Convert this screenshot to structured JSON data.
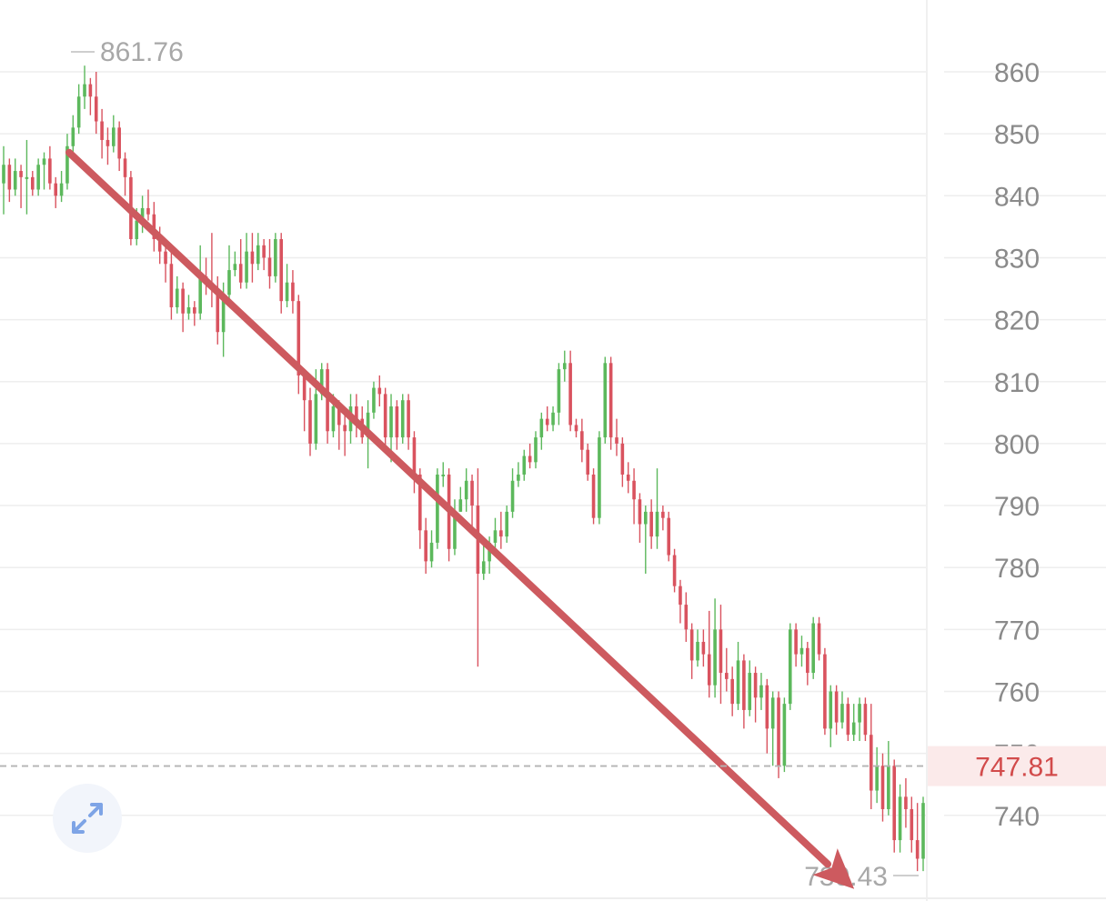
{
  "chart_data": {
    "type": "candlestick",
    "title": "",
    "xlabel": "",
    "ylabel": "",
    "ylim": [
      729,
      868
    ],
    "yticks": [
      860,
      850,
      840,
      830,
      820,
      810,
      800,
      790,
      780,
      770,
      760,
      740
    ],
    "ytick_labels": [
      "860",
      "850",
      "840",
      "830",
      "820",
      "810",
      "800",
      "790",
      "780",
      "770",
      "760",
      "740"
    ],
    "partially_hidden_tick_label": "750",
    "grid": true,
    "high_label": "861.76",
    "low_label": "730.43",
    "high_value": 861.76,
    "low_value": 730.43,
    "current_price": 747.81,
    "current_price_label": "747.81",
    "trend_arrow": {
      "start": 848,
      "end": 738
    },
    "colors": {
      "up": "#5cb85c",
      "down": "#d9535f",
      "arrow": "#cd5a5f",
      "grid": "#eeeeee",
      "current_line": "#b4b4b4",
      "current_bg": "#fbeaea",
      "current_text": "#d24b4b",
      "expand_icon": "#7ea4e6"
    },
    "candles": [
      [
        842,
        845,
        837,
        848
      ],
      [
        845,
        841,
        839,
        846
      ],
      [
        841,
        844,
        840,
        846
      ],
      [
        844,
        843,
        838,
        845
      ],
      [
        843,
        843,
        837,
        849
      ],
      [
        843,
        841,
        840,
        844
      ],
      [
        841,
        845,
        840,
        846
      ],
      [
        845,
        846,
        841,
        847
      ],
      [
        846,
        842,
        841,
        848
      ],
      [
        842,
        840,
        838,
        843
      ],
      [
        840,
        842,
        839,
        844
      ],
      [
        842,
        848,
        841,
        850
      ],
      [
        848,
        851,
        847,
        853
      ],
      [
        851,
        856,
        850,
        858
      ],
      [
        856,
        858,
        854,
        861
      ],
      [
        858,
        856,
        853,
        859
      ],
      [
        856,
        852,
        850,
        860
      ],
      [
        852,
        849,
        846,
        854
      ],
      [
        849,
        848,
        845,
        851
      ],
      [
        848,
        851,
        847,
        853
      ],
      [
        851,
        846,
        844,
        852
      ],
      [
        846,
        843,
        840,
        847
      ],
      [
        843,
        833,
        832,
        844
      ],
      [
        833,
        836,
        832,
        838
      ],
      [
        836,
        838,
        834,
        840
      ],
      [
        838,
        837,
        836,
        841
      ],
      [
        837,
        833,
        831,
        839
      ],
      [
        833,
        831,
        829,
        835
      ],
      [
        831,
        829,
        826,
        832
      ],
      [
        829,
        822,
        820,
        831
      ],
      [
        822,
        825,
        821,
        827
      ],
      [
        825,
        821,
        818,
        826
      ],
      [
        821,
        822,
        820,
        824
      ],
      [
        822,
        821,
        819,
        823
      ],
      [
        821,
        827,
        820,
        832
      ],
      [
        827,
        826,
        824,
        830
      ],
      [
        826,
        825,
        822,
        834
      ],
      [
        825,
        818,
        816,
        827
      ],
      [
        818,
        824,
        814,
        826
      ],
      [
        824,
        828,
        823,
        832
      ],
      [
        828,
        829,
        827,
        831
      ],
      [
        829,
        826,
        825,
        833
      ],
      [
        826,
        831,
        825,
        834
      ],
      [
        831,
        829,
        826,
        834
      ],
      [
        829,
        832,
        828,
        834
      ],
      [
        832,
        830,
        828,
        833
      ],
      [
        830,
        827,
        825,
        833
      ],
      [
        827,
        833,
        826,
        834
      ],
      [
        833,
        823,
        821,
        834
      ],
      [
        823,
        826,
        822,
        829
      ],
      [
        826,
        823,
        821,
        828
      ],
      [
        823,
        811,
        808,
        824
      ],
      [
        811,
        807,
        802,
        812
      ],
      [
        807,
        800,
        798,
        809
      ],
      [
        800,
        808,
        799,
        812
      ],
      [
        808,
        812,
        807,
        813
      ],
      [
        812,
        802,
        800,
        813
      ],
      [
        802,
        806,
        801,
        808
      ],
      [
        806,
        803,
        799,
        807
      ],
      [
        803,
        802,
        798,
        805
      ],
      [
        802,
        806,
        800,
        808
      ],
      [
        806,
        804,
        801,
        808
      ],
      [
        804,
        801,
        800,
        806
      ],
      [
        801,
        805,
        796,
        807
      ],
      [
        805,
        809,
        804,
        810
      ],
      [
        809,
        808,
        806,
        811
      ],
      [
        808,
        801,
        799,
        809
      ],
      [
        801,
        806,
        797,
        808
      ],
      [
        806,
        801,
        799,
        807
      ],
      [
        801,
        807,
        800,
        808
      ],
      [
        807,
        801,
        799,
        808
      ],
      [
        801,
        795,
        792,
        802
      ],
      [
        795,
        786,
        783,
        796
      ],
      [
        786,
        781,
        779,
        788
      ],
      [
        781,
        784,
        780,
        786
      ],
      [
        784,
        795,
        783,
        796
      ],
      [
        795,
        795,
        793,
        797
      ],
      [
        795,
        783,
        781,
        796
      ],
      [
        783,
        789,
        782,
        791
      ],
      [
        789,
        791,
        789,
        793
      ],
      [
        791,
        794,
        789,
        796
      ],
      [
        794,
        790,
        786,
        795
      ],
      [
        790,
        779,
        764,
        796
      ],
      [
        779,
        781,
        778,
        784
      ],
      [
        781,
        784,
        779,
        785
      ],
      [
        784,
        786,
        783,
        788
      ],
      [
        786,
        785,
        783,
        789
      ],
      [
        785,
        789,
        784,
        790
      ],
      [
        789,
        794,
        788,
        796
      ],
      [
        794,
        795,
        793,
        797
      ],
      [
        795,
        798,
        794,
        799
      ],
      [
        798,
        797,
        796,
        800
      ],
      [
        797,
        801,
        796,
        802
      ],
      [
        801,
        804,
        799,
        805
      ],
      [
        804,
        803,
        802,
        806
      ],
      [
        803,
        805,
        802,
        806
      ],
      [
        805,
        812,
        803,
        813
      ],
      [
        812,
        813,
        810,
        815
      ],
      [
        813,
        803,
        802,
        815
      ],
      [
        803,
        802,
        801,
        804
      ],
      [
        802,
        799,
        797,
        804
      ],
      [
        799,
        795,
        794,
        800
      ],
      [
        795,
        788,
        787,
        796
      ],
      [
        788,
        801,
        787,
        802
      ],
      [
        801,
        813,
        800,
        814
      ],
      [
        813,
        801,
        799,
        814
      ],
      [
        801,
        800,
        798,
        804
      ],
      [
        800,
        795,
        793,
        801
      ],
      [
        795,
        794,
        792,
        797
      ],
      [
        794,
        791,
        787,
        796
      ],
      [
        791,
        787,
        784,
        792
      ],
      [
        787,
        789,
        779,
        790
      ],
      [
        789,
        785,
        783,
        791
      ],
      [
        785,
        789,
        783,
        796
      ],
      [
        789,
        788,
        786,
        790
      ],
      [
        788,
        782,
        781,
        789
      ],
      [
        782,
        777,
        776,
        783
      ],
      [
        777,
        774,
        771,
        778
      ],
      [
        774,
        770,
        768,
        776
      ],
      [
        770,
        765,
        762,
        771
      ],
      [
        765,
        768,
        764,
        770
      ],
      [
        768,
        766,
        764,
        770
      ],
      [
        766,
        761,
        759,
        773
      ],
      [
        761,
        770,
        759,
        775
      ],
      [
        770,
        763,
        758,
        774
      ],
      [
        763,
        762,
        760,
        767
      ],
      [
        762,
        758,
        756,
        764
      ],
      [
        758,
        765,
        757,
        768
      ],
      [
        765,
        757,
        754,
        766
      ],
      [
        757,
        763,
        756,
        765
      ],
      [
        763,
        759,
        755,
        764
      ],
      [
        759,
        761,
        757,
        763
      ],
      [
        761,
        754,
        750,
        762
      ],
      [
        754,
        759,
        748,
        760
      ],
      [
        759,
        748,
        746,
        760
      ],
      [
        748,
        758,
        747,
        759
      ],
      [
        758,
        770,
        757,
        771
      ],
      [
        770,
        766,
        764,
        771
      ],
      [
        766,
        767,
        764,
        769
      ],
      [
        767,
        763,
        761,
        768
      ],
      [
        763,
        771,
        762,
        772
      ],
      [
        771,
        766,
        765,
        772
      ],
      [
        766,
        754,
        753,
        767
      ],
      [
        754,
        760,
        751,
        761
      ],
      [
        760,
        755,
        753,
        761
      ],
      [
        755,
        758,
        754,
        760
      ],
      [
        758,
        753,
        752,
        759
      ],
      [
        753,
        755,
        752,
        758
      ],
      [
        755,
        758,
        752,
        759
      ],
      [
        758,
        753,
        752,
        759
      ],
      [
        753,
        744,
        741,
        758
      ],
      [
        744,
        748,
        742,
        751
      ],
      [
        748,
        741,
        739,
        750
      ],
      [
        741,
        748,
        740,
        752
      ],
      [
        748,
        736,
        734,
        749
      ],
      [
        736,
        743,
        734,
        745
      ],
      [
        743,
        741,
        738,
        746
      ],
      [
        741,
        736,
        734,
        743
      ],
      [
        736,
        733,
        731,
        742
      ],
      [
        733,
        742,
        731,
        743
      ]
    ]
  }
}
